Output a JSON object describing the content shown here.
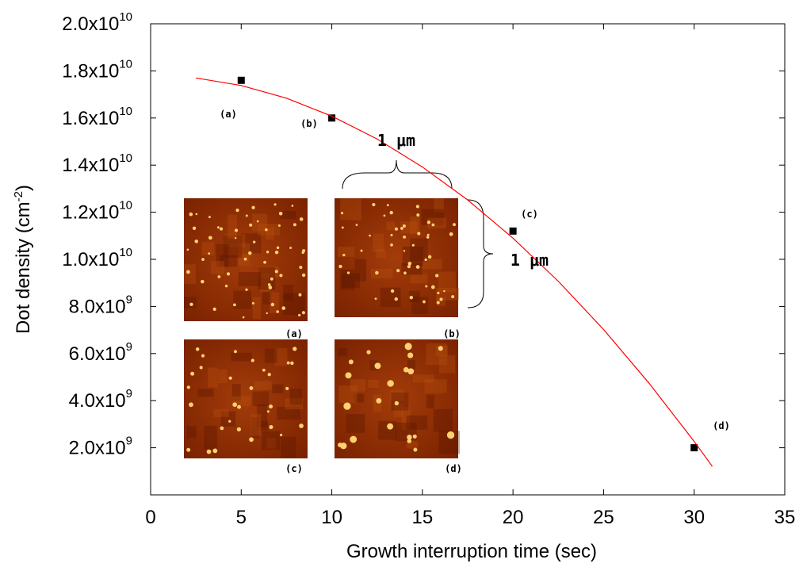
{
  "chart_data": {
    "type": "scatter",
    "xlabel": "Growth interruption time (sec)",
    "ylabel": {
      "text": "Dot density (cm",
      "sup": "-2",
      "end": ")"
    },
    "xlim": [
      0,
      35
    ],
    "ylim": [
      0,
      20000000000
    ],
    "xticks": [
      0,
      5,
      10,
      15,
      20,
      25,
      30,
      35
    ],
    "yticks": [
      {
        "value": 2000000000,
        "label": "2.0x10",
        "sup": "9"
      },
      {
        "value": 4000000000,
        "label": "4.0x10",
        "sup": "9"
      },
      {
        "value": 6000000000,
        "label": "6.0x10",
        "sup": "9"
      },
      {
        "value": 8000000000,
        "label": "8.0x10",
        "sup": "9"
      },
      {
        "value": 10000000000,
        "label": "1.0x10",
        "sup": "10"
      },
      {
        "value": 12000000000,
        "label": "1.2x10",
        "sup": "10"
      },
      {
        "value": 14000000000,
        "label": "1.4x10",
        "sup": "10"
      },
      {
        "value": 16000000000,
        "label": "1.6x10",
        "sup": "10"
      },
      {
        "value": 18000000000,
        "label": "1.8x10",
        "sup": "10"
      },
      {
        "value": 20000000000,
        "label": "2.0x10",
        "sup": "10"
      }
    ],
    "series": [
      {
        "type": "scatter",
        "color": "#000000",
        "x": [
          5,
          10,
          20,
          30
        ],
        "values": [
          17600000000,
          16000000000,
          11200000000,
          2000000000
        ]
      },
      {
        "type": "line",
        "color": "#ff0000",
        "x": [
          2.5,
          5,
          7.5,
          10,
          12.5,
          15,
          17.5,
          20,
          22.5,
          25,
          27.5,
          30,
          31
        ],
        "values": [
          17700000000,
          17380000000,
          16840000000,
          16080000000,
          15110000000,
          13920000000,
          12520000000,
          10900000000,
          9070000000,
          7020000000,
          4750000000,
          2270000000,
          1210000000
        ]
      }
    ],
    "point_labels": [
      "(a)",
      "(b)",
      "(c)",
      "(d)"
    ],
    "inset_labels": [
      "(a)",
      "(b)",
      "(c)",
      "(d)"
    ],
    "scale_labels": [
      "1 μm",
      "1 μm"
    ]
  }
}
